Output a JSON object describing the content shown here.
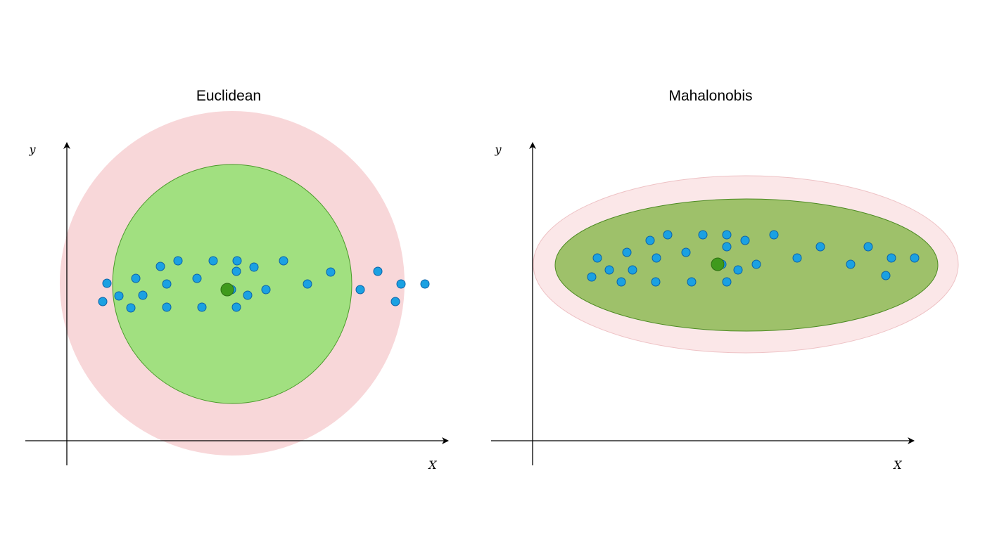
{
  "colors": {
    "outer_fill": "#f8d7d9",
    "outer_stroke": "#eec2c5",
    "euclidean_inner_fill": "#a1e080",
    "euclidean_inner_stroke": "#4a9a2a",
    "mahalanobis_inner_fill": "#9ec16a",
    "mahalanobis_inner_stroke": "#4c8a22",
    "point_fill": "#1ba1e2",
    "point_stroke": "#0b62a8",
    "centroid_fill": "#3f9a1c",
    "centroid_stroke": "#2c6e12",
    "axis": "#000000"
  },
  "panels": {
    "euclidean": {
      "title": "Euclidean",
      "y_label": "y",
      "x_label": "X"
    },
    "mahalanobis": {
      "title": "Mahalonobis",
      "y_label": "y",
      "x_label": "X"
    }
  }
}
